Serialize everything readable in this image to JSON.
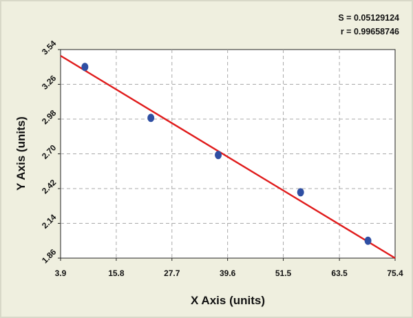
{
  "stats": {
    "s_line": "S = 0.05129124",
    "r_line": "r = 0.99658746"
  },
  "chart_data": {
    "type": "scatter",
    "xlabel": "X Axis (units)",
    "ylabel": "Y Axis (units)",
    "xlim": [
      3.9,
      75.4
    ],
    "ylim": [
      1.86,
      3.54
    ],
    "x_ticks": [
      "3.9",
      "15.8",
      "27.7",
      "39.6",
      "51.5",
      "63.5",
      "75.4"
    ],
    "y_ticks": [
      "1.86",
      "2.14",
      "2.42",
      "2.70",
      "2.98",
      "3.26",
      "3.54"
    ],
    "grid": true,
    "points": [
      {
        "x": 9.1,
        "y": 3.4
      },
      {
        "x": 23.2,
        "y": 2.99
      },
      {
        "x": 37.6,
        "y": 2.69
      },
      {
        "x": 55.2,
        "y": 2.39
      },
      {
        "x": 69.6,
        "y": 2.0
      }
    ],
    "fit_line": {
      "x": [
        3.9,
        75.4
      ],
      "y": [
        3.49,
        1.86
      ]
    },
    "colors": {
      "points": "#2f4fa3",
      "fit_line": "#e01b1b",
      "grid": "#a8a8a8",
      "plot_bg": "#ffffff",
      "frame_bg": "#efefdf"
    }
  }
}
